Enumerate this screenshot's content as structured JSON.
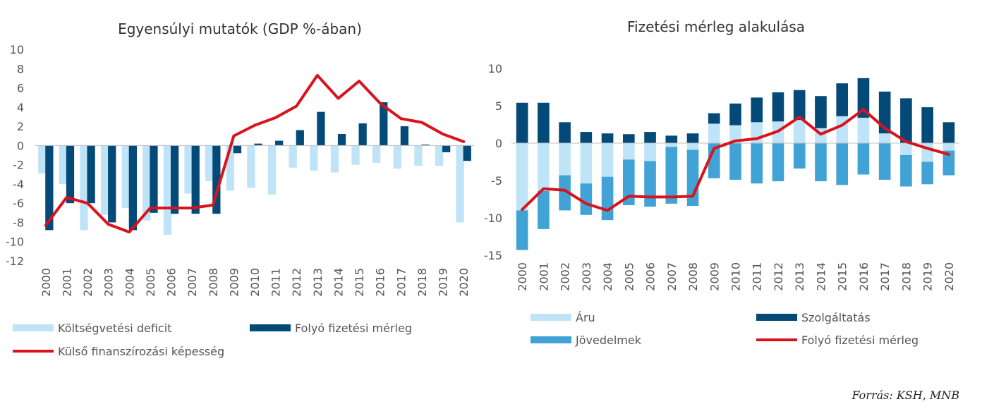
{
  "source": "Forrás: KSH, MNB",
  "colors": {
    "light": "#bfe3f7",
    "dark": "#034a78",
    "mid": "#41a2d6",
    "red": "#d9131e",
    "axis": "#bfbfbf"
  },
  "chart_data": [
    {
      "type": "bar",
      "title": "Egyensúlyi mutatók (GDP %-ában)",
      "categories": [
        "2000",
        "2001",
        "2002",
        "2003",
        "2004",
        "2005",
        "2006",
        "2007",
        "2008",
        "2009",
        "2010",
        "2011",
        "2012",
        "2013",
        "2014",
        "2015",
        "2016",
        "2017",
        "2018",
        "2019",
        "2020"
      ],
      "ylim": [
        -12,
        10
      ],
      "yticks": [
        10,
        8,
        6,
        4,
        2,
        0,
        -2,
        -4,
        -6,
        -8,
        -10,
        -12
      ],
      "series": [
        {
          "name": "Költségvetési deficit",
          "kind": "bar",
          "color": "#bfe3f7",
          "values": [
            -2.9,
            -4.0,
            -8.8,
            -7.2,
            -6.5,
            -7.8,
            -9.3,
            -5.0,
            -3.7,
            -4.7,
            -4.4,
            -5.1,
            -2.3,
            -2.6,
            -2.8,
            -2.0,
            -1.8,
            -2.4,
            -2.1,
            -2.1,
            -8.0
          ]
        },
        {
          "name": "Folyó fizetési mérleg",
          "kind": "bar",
          "color": "#034a78",
          "values": [
            -8.8,
            -6.0,
            -6.0,
            -8.0,
            -8.8,
            -7.0,
            -7.1,
            -7.1,
            -7.1,
            -0.8,
            0.2,
            0.5,
            1.6,
            3.5,
            1.2,
            2.3,
            4.5,
            2.0,
            0.1,
            -0.7,
            -1.6
          ]
        },
        {
          "name": "Külső finanszírozási képesség",
          "kind": "line",
          "color": "#d9131e",
          "values": [
            -8.3,
            -5.4,
            -6.0,
            -8.2,
            -9.0,
            -6.5,
            -6.5,
            -6.5,
            -6.2,
            1.0,
            2.1,
            2.9,
            4.1,
            7.3,
            4.9,
            6.7,
            4.4,
            2.8,
            2.4,
            1.2,
            0.4
          ]
        }
      ],
      "legend": [
        "Költségvetési deficit",
        "Folyó fizetési mérleg",
        "Külső finanszírozási képesség"
      ]
    },
    {
      "type": "bar",
      "title": "Fizetési mérleg alakulása",
      "stacked": true,
      "categories": [
        "2000",
        "2001",
        "2002",
        "2003",
        "2004",
        "2005",
        "2006",
        "2007",
        "2008",
        "2009",
        "2010",
        "2011",
        "2012",
        "2013",
        "2014",
        "2015",
        "2016",
        "2017",
        "2018",
        "2019",
        "2020"
      ],
      "ylim": [
        -15,
        10
      ],
      "yticks": [
        10,
        5,
        0,
        -5,
        -10,
        -15
      ],
      "series": [
        {
          "name": "Áru",
          "kind": "bar",
          "color": "#bfe3f7",
          "values": [
            -9.0,
            -6.4,
            -4.3,
            -5.4,
            -4.5,
            -2.2,
            -2.4,
            -0.5,
            -0.9,
            2.6,
            2.4,
            2.8,
            2.9,
            3.1,
            2.0,
            3.6,
            3.4,
            1.3,
            -1.6,
            -2.5,
            -1.0
          ]
        },
        {
          "name": "Szolgáltatás",
          "kind": "bar",
          "color": "#034a78",
          "values": [
            5.4,
            5.4,
            2.8,
            1.5,
            1.3,
            1.2,
            1.5,
            1.0,
            1.3,
            1.4,
            2.9,
            3.3,
            3.9,
            4.0,
            4.3,
            4.4,
            5.3,
            5.6,
            6.0,
            4.8,
            2.8
          ]
        },
        {
          "name": "Jövedelmek",
          "kind": "bar",
          "color": "#41a2d6",
          "values": [
            -5.3,
            -5.1,
            -4.7,
            -4.2,
            -5.8,
            -6.1,
            -6.1,
            -7.6,
            -7.5,
            -4.7,
            -4.9,
            -5.4,
            -5.1,
            -3.4,
            -5.1,
            -5.6,
            -4.2,
            -4.9,
            -4.2,
            -3.0,
            -3.3
          ]
        },
        {
          "name": "Folyó fizetési mérleg",
          "kind": "line",
          "color": "#d9131e",
          "values": [
            -8.9,
            -6.1,
            -6.3,
            -8.1,
            -9.0,
            -7.1,
            -7.2,
            -7.2,
            -7.1,
            -0.7,
            0.3,
            0.6,
            1.6,
            3.5,
            1.2,
            2.4,
            4.5,
            2.0,
            0.2,
            -0.7,
            -1.5
          ]
        }
      ],
      "legend": [
        "Áru",
        "Szolgáltatás",
        "Jövedelmek",
        "Folyó fizetési mérleg"
      ]
    }
  ]
}
